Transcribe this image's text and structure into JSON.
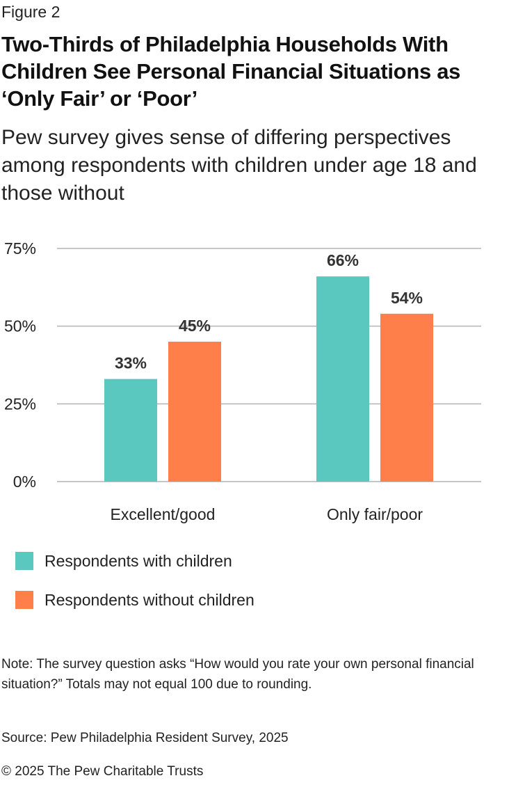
{
  "figure_label": "Figure 2",
  "title": "Two-Thirds of Philadelphia Households With Children See Personal Financial Situations as ‘Only Fair’ or ‘Poor’",
  "subtitle": "Pew survey gives sense of differing perspectives among respondents with children under age 18 and those without",
  "chart_data": {
    "type": "bar",
    "categories": [
      "Excellent/good",
      "Only fair/poor"
    ],
    "series": [
      {
        "name": "Respondents with children",
        "values": [
          33,
          66
        ],
        "color": "#5BC8BF"
      },
      {
        "name": "Respondents without children",
        "values": [
          45,
          54
        ],
        "color": "#FF7F4B"
      }
    ],
    "data_labels": [
      [
        "33%",
        "66%"
      ],
      [
        "45%",
        "54%"
      ]
    ],
    "ylim": [
      0,
      75
    ],
    "yticks": [
      0,
      25,
      50,
      75
    ],
    "ytick_labels": [
      "0%",
      "25%",
      "50%",
      "75%"
    ],
    "grid": true,
    "legend": "bottom-left"
  },
  "note": "Note: The survey question asks “How would you rate your own personal financial situation?” Totals may not equal 100 due to rounding.",
  "source": "Source: Pew Philadelphia Resident Survey, 2025",
  "copyright": "© 2025 The Pew Charitable Trusts"
}
